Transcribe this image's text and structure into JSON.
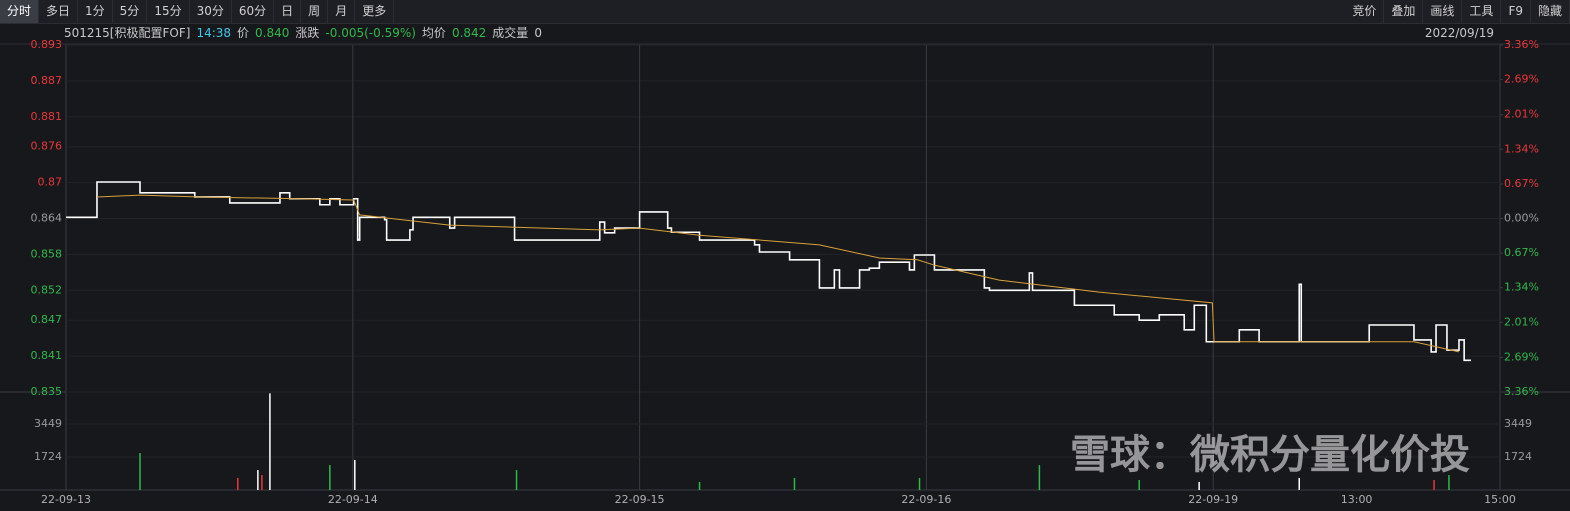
{
  "toolbar": {
    "left": [
      "分时",
      "多日",
      "1分",
      "5分",
      "15分",
      "30分",
      "60分",
      "日",
      "周",
      "月",
      "更多"
    ],
    "right": [
      "竞价",
      "叠加",
      "画线",
      "工具",
      "F9",
      "隐藏"
    ]
  },
  "header": {
    "code": "501215[积极配置FOF]",
    "time": "14:38",
    "price_label": "价",
    "price": "0.840",
    "change_label": "涨跌",
    "change": "-0.005(-0.59%)",
    "avg_label": "均价",
    "avg": "0.842",
    "volume_label": "成交量",
    "volume": "0",
    "date": "2022/09/19"
  },
  "watermark": "雪球：微积分量化价投",
  "chart_data": [
    {
      "type": "line",
      "xlim": [
        0,
        5
      ],
      "xticks": [
        {
          "value": 0,
          "label": "22-09-13"
        },
        {
          "value": 1,
          "label": "22-09-14"
        },
        {
          "value": 2,
          "label": "22-09-15"
        },
        {
          "value": 3,
          "label": "22-09-16"
        },
        {
          "value": 4,
          "label": "22-09-19"
        },
        {
          "value": 4.5,
          "label": "13:00"
        },
        {
          "value": 5,
          "label": "15:00"
        }
      ],
      "xgrid": [
        1,
        2,
        3,
        4
      ],
      "ylim": [
        0.835,
        0.893
      ],
      "yticks": [
        0.893,
        0.887,
        0.881,
        0.876,
        0.87,
        0.864,
        0.858,
        0.852,
        0.847,
        0.841,
        0.835
      ],
      "y2lim": [
        -3.36,
        3.36
      ],
      "y2ticks": [
        {
          "value": 3.36,
          "label": "3.36%"
        },
        {
          "value": 2.69,
          "label": "2.69%"
        },
        {
          "value": 2.01,
          "label": "2.01%"
        },
        {
          "value": 1.34,
          "label": "1.34%"
        },
        {
          "value": 0.67,
          "label": "0.67%"
        },
        {
          "value": 0,
          "label": "0.00%"
        },
        {
          "value": -0.67,
          "label": "0.67%"
        },
        {
          "value": -1.34,
          "label": "1.34%"
        },
        {
          "value": -2.01,
          "label": "2.01%"
        },
        {
          "value": -2.69,
          "label": "2.69%"
        },
        {
          "value": -3.36,
          "label": "3.36%"
        }
      ],
      "up_color": "#e8373a",
      "down_color": "#2fb84a",
      "flat_color": "#9a9a9a",
      "series": [
        {
          "color": "#ffffff",
          "step": true,
          "x": [
            0,
            0.108,
            0.258,
            0.449,
            0.571,
            0.746,
            0.78,
            0.885,
            0.92,
            0.955,
            1.003,
            1.017,
            1.024,
            1.111,
            1.118,
            1.199,
            1.21,
            1.338,
            1.355,
            1.38,
            1.564,
            1.582,
            1.861,
            1.878,
            1.913,
            2.0,
            2.028,
            2.098,
            2.111,
            2.209,
            2.244,
            2.401,
            2.418,
            2.523,
            2.627,
            2.679,
            2.697,
            2.767,
            2.801,
            2.836,
            2.941,
            2.958,
            2.969,
            3.028,
            3.202,
            3.22,
            3.359,
            3.37,
            3.516,
            3.655,
            3.742,
            3.812,
            3.899,
            3.934,
            3.976,
            4.003,
            4.091,
            4.16,
            4.293,
            4.3,
            4.307,
            4.526,
            4.544,
            4.7,
            4.76,
            4.777,
            4.815,
            4.857,
            4.875,
            4.899
          ],
          "values": [
            0.8642,
            0.8701,
            0.8683,
            0.8676,
            0.8666,
            0.8683,
            0.8673,
            0.8663,
            0.8673,
            0.8663,
            0.8673,
            0.8604,
            0.8642,
            0.8638,
            0.8604,
            0.8621,
            0.8642,
            0.8624,
            0.8642,
            0.8642,
            0.8604,
            0.8604,
            0.8634,
            0.8616,
            0.8624,
            0.8651,
            0.8651,
            0.8624,
            0.8617,
            0.8604,
            0.8604,
            0.8596,
            0.8584,
            0.8571,
            0.8524,
            0.8554,
            0.8524,
            0.8554,
            0.8557,
            0.8567,
            0.8554,
            0.8579,
            0.8579,
            0.8554,
            0.8524,
            0.852,
            0.8549,
            0.852,
            0.8495,
            0.8479,
            0.847,
            0.8479,
            0.8454,
            0.8495,
            0.8434,
            0.8434,
            0.8454,
            0.8434,
            0.8434,
            0.853,
            0.8434,
            0.8434,
            0.8462,
            0.8437,
            0.8417,
            0.8462,
            0.842,
            0.8437,
            0.8403,
            0.8403
          ]
        },
        {
          "color": "#d9a13a",
          "step": false,
          "x": [
            0.108,
            0.258,
            0.467,
            0.815,
            1.003,
            1.024,
            1.338,
            1.861,
            2.0,
            2.209,
            2.418,
            2.627,
            2.836,
            2.969,
            3.028,
            3.254,
            3.603,
            3.997,
            4.003,
            4.7,
            4.857
          ],
          "values": [
            0.8676,
            0.8679,
            0.8676,
            0.8673,
            0.8671,
            0.8646,
            0.8629,
            0.8621,
            0.8624,
            0.8612,
            0.8604,
            0.8596,
            0.8574,
            0.8571,
            0.8562,
            0.8537,
            0.8517,
            0.8499,
            0.8434,
            0.8434,
            0.8417
          ]
        }
      ]
    },
    {
      "type": "bar",
      "xlim": [
        0,
        5
      ],
      "ylim": [
        0,
        5120
      ],
      "yticks": [
        1724,
        3449
      ],
      "y2ticks": [
        1724,
        3449
      ],
      "x": [
        0.258,
        0.599,
        0.669,
        0.683,
        0.711,
        0.92,
        1.007,
        1.571,
        2.209,
        2.54,
        2.976,
        3.394,
        3.742,
        3.951,
        4.3,
        4.77,
        4.822
      ],
      "values": [
        1930,
        630,
        1040,
        780,
        5050,
        1300,
        1570,
        1040,
        420,
        630,
        630,
        1300,
        520,
        420,
        630,
        520,
        780
      ],
      "colors": [
        "#2fb84a",
        "#e8373a",
        "#ffffff",
        "#e8373a",
        "#ffffff",
        "#2fb84a",
        "#ffffff",
        "#2fb84a",
        "#2fb84a",
        "#2fb84a",
        "#2fb84a",
        "#2fb84a",
        "#2fb84a",
        "#ffffff",
        "#ffffff",
        "#e8373a",
        "#2fb84a"
      ]
    }
  ]
}
